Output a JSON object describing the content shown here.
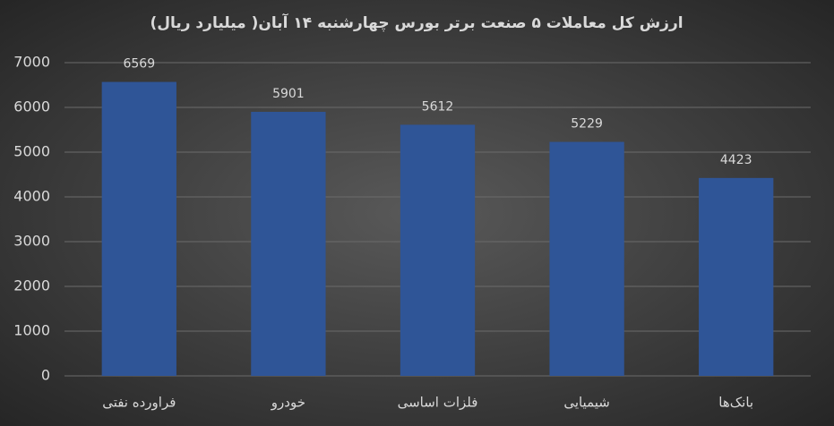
{
  "chart_data": {
    "type": "bar",
    "title": "ارزش کل معاملات ۵ صنعت برتر بورس چهارشنبه ۱۴ آبان( میلیارد ریال)",
    "categories": [
      "فراورده نفتی",
      "خودرو",
      "فلزات اساسی",
      "شیمیایی",
      "بانک‌ها"
    ],
    "values": [
      6569,
      5901,
      5612,
      5229,
      4423
    ],
    "color": "#2f5597",
    "ylim": [
      0,
      7000
    ],
    "yticks": [
      0,
      1000,
      2000,
      3000,
      4000,
      5000,
      6000,
      7000
    ],
    "grid": true
  }
}
